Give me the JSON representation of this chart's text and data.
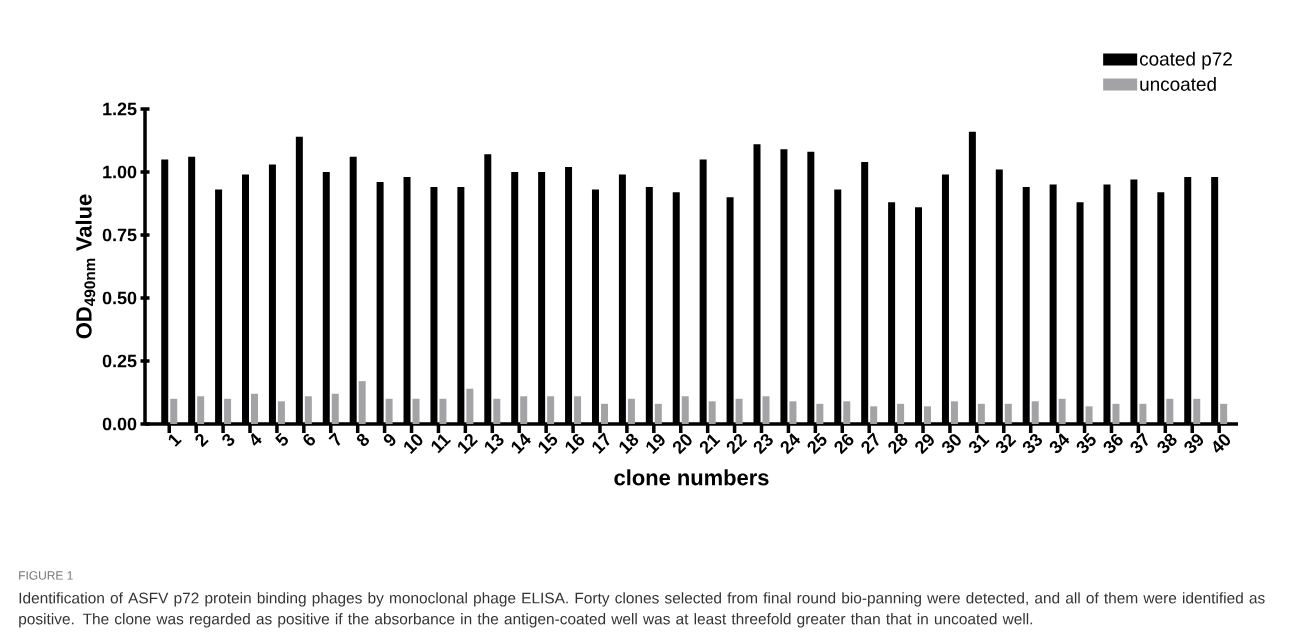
{
  "chart_data": {
    "type": "bar",
    "xlabel": "clone numbers",
    "ylabel": "OD$_{490nm}$ Value",
    "categories": [
      "1",
      "2",
      "3",
      "4",
      "5",
      "6",
      "7",
      "8",
      "9",
      "10",
      "11",
      "12",
      "13",
      "14",
      "15",
      "16",
      "17",
      "18",
      "19",
      "20",
      "21",
      "22",
      "23",
      "24",
      "25",
      "26",
      "27",
      "28",
      "29",
      "30",
      "31",
      "32",
      "33",
      "34",
      "35",
      "36",
      "37",
      "38",
      "39",
      "40"
    ],
    "series": [
      {
        "name": "coated p72",
        "color": "#000000",
        "values": [
          1.05,
          1.06,
          0.93,
          0.99,
          1.03,
          1.14,
          1.0,
          1.06,
          0.96,
          0.98,
          0.94,
          0.94,
          1.07,
          1.0,
          1.0,
          1.02,
          0.93,
          0.99,
          0.94,
          0.92,
          1.05,
          0.9,
          1.11,
          1.09,
          1.08,
          0.93,
          1.04,
          0.88,
          0.86,
          0.99,
          1.16,
          1.01,
          0.94,
          0.95,
          0.88,
          0.95,
          0.97,
          0.92,
          0.98,
          0.98
        ]
      },
      {
        "name": "uncoated",
        "color": "#a3a3a6",
        "values": [
          0.1,
          0.11,
          0.1,
          0.12,
          0.09,
          0.11,
          0.12,
          0.17,
          0.1,
          0.1,
          0.1,
          0.14,
          0.1,
          0.11,
          0.11,
          0.11,
          0.08,
          0.1,
          0.08,
          0.11,
          0.09,
          0.1,
          0.11,
          0.09,
          0.08,
          0.09,
          0.07,
          0.08,
          0.07,
          0.09,
          0.08,
          0.08,
          0.09,
          0.1,
          0.07,
          0.08,
          0.08,
          0.1,
          0.1,
          0.08
        ]
      }
    ],
    "ylim": [
      0,
      1.25
    ],
    "yticks": [
      {
        "value": 0,
        "label": "0.00"
      },
      {
        "value": 0.25,
        "label": "0.25"
      },
      {
        "value": 0.5,
        "label": "0.50"
      },
      {
        "value": 0.75,
        "label": "0.75"
      },
      {
        "value": 1.0,
        "label": "1.00"
      },
      {
        "value": 1.25,
        "label": "1.25"
      }
    ],
    "legend": "top right",
    "annotations": [
      "FIGURE 1",
      "Identification of ASFV p72 protein binding phages by monoclonal phage ELISA. Forty clones selected from final round bio-panning were detected, and all of them were identified as positive. The clone was regarded as positive if the absorbance in the antigen-coated well was at least threefold greater than that in uncoated well."
    ]
  }
}
